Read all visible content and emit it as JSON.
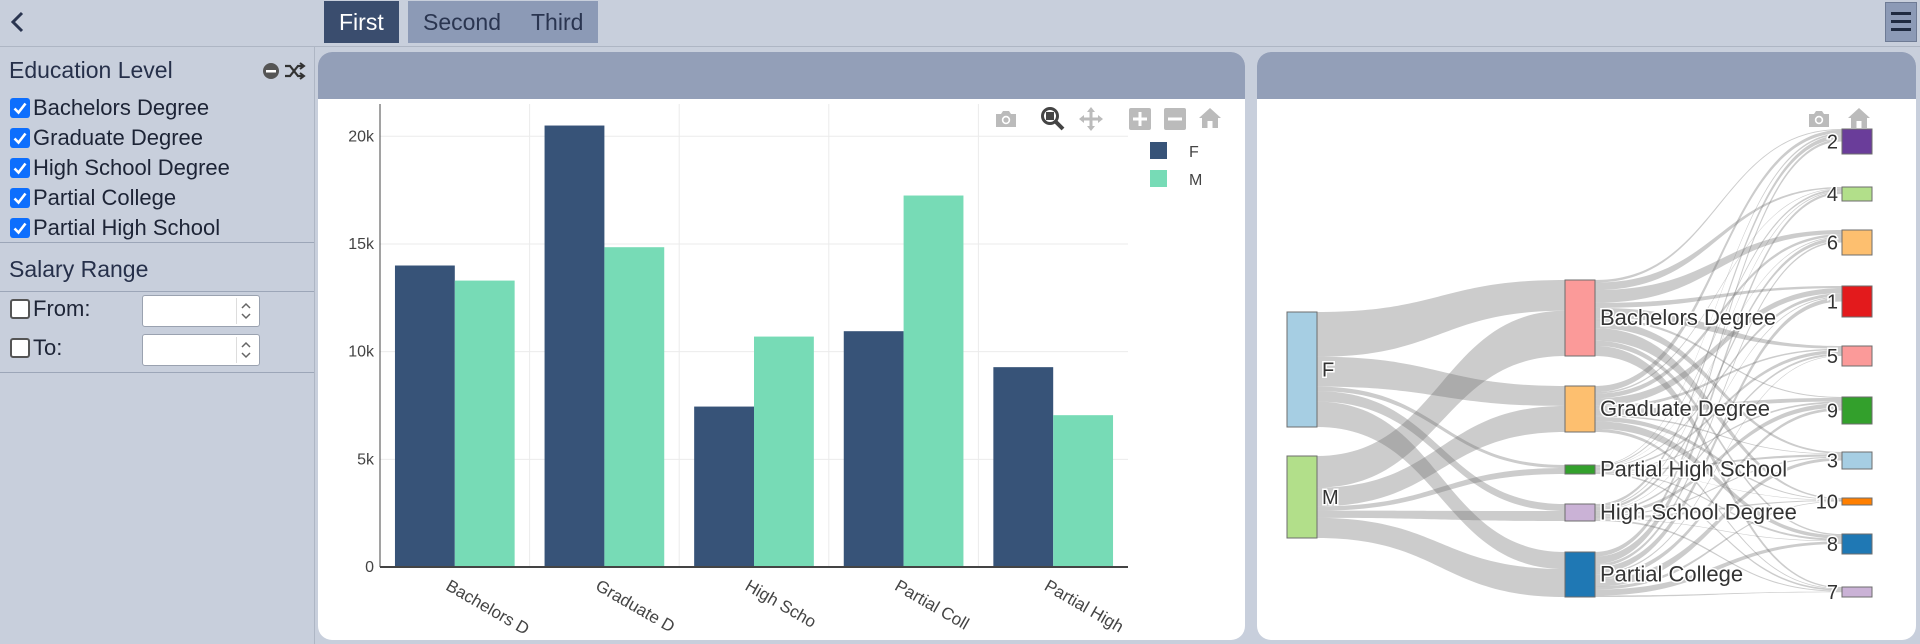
{
  "tabs": [
    {
      "label": "First",
      "active": true
    },
    {
      "label": "Second",
      "active": false
    },
    {
      "label": "Third",
      "active": false
    }
  ],
  "sidebar": {
    "education_title": "Education Level",
    "education_items": [
      {
        "label": "Bachelors Degree",
        "checked": true
      },
      {
        "label": "Graduate Degree",
        "checked": true
      },
      {
        "label": "High School Degree",
        "checked": true
      },
      {
        "label": "Partial College",
        "checked": true
      },
      {
        "label": "Partial High School",
        "checked": true
      }
    ],
    "salary_title": "Salary Range",
    "from_label": "From:",
    "to_label": "To:",
    "from_value": "",
    "to_value": ""
  },
  "colors": {
    "F": "#375378",
    "M": "#77dbb6",
    "header": "#939fb8"
  },
  "icons": [
    "back-chevron-icon",
    "hamburger-menu-icon",
    "camera-icon",
    "zoom-icon",
    "pan-icon",
    "zoom-in-icon",
    "zoom-out-icon",
    "home-icon",
    "shuffle-icon",
    "minus-circle-icon"
  ],
  "chart_data": [
    {
      "type": "bar",
      "categories": [
        "Bachelors Degree",
        "Graduate Degree",
        "High School Degree",
        "Partial College",
        "Partial High School"
      ],
      "category_tick_labels": [
        "Bachelors D",
        "Graduate D",
        "High Scho",
        "Partial Coll",
        "Partial High"
      ],
      "series": [
        {
          "name": "F",
          "values": [
            14000,
            20500,
            7450,
            10950,
            9280
          ]
        },
        {
          "name": "M",
          "values": [
            13300,
            14850,
            10700,
            17250,
            7050
          ]
        }
      ],
      "yticks": [
        0,
        5000,
        10000,
        15000,
        20000
      ],
      "ytick_labels": [
        "0",
        "5k",
        "10k",
        "15k",
        "20k"
      ],
      "ylim": [
        0,
        21500
      ],
      "legend_position": "top-right",
      "grid": true
    },
    {
      "type": "sankey",
      "source_nodes": [
        {
          "label": "F",
          "color": "#a6cee3"
        },
        {
          "label": "M",
          "color": "#b2df8a"
        }
      ],
      "middle_nodes": [
        {
          "label": "Bachelors Degree",
          "color": "#fb9a99"
        },
        {
          "label": "Graduate Degree",
          "color": "#fdbf6f"
        },
        {
          "label": "Partial High School",
          "color": "#33a02c"
        },
        {
          "label": "High School Degree",
          "color": "#cab2d6"
        },
        {
          "label": "Partial College",
          "color": "#1f78b4"
        }
      ],
      "target_nodes": [
        {
          "label": "2",
          "color": "#6a3d9a"
        },
        {
          "label": "4",
          "color": "#b2df8a"
        },
        {
          "label": "6",
          "color": "#fdbf6f"
        },
        {
          "label": "1",
          "color": "#e31a1c"
        },
        {
          "label": "5",
          "color": "#fb9a99"
        },
        {
          "label": "9",
          "color": "#33a02c"
        },
        {
          "label": "3",
          "color": "#a6cee3"
        },
        {
          "label": "10",
          "color": "#ff7f00"
        },
        {
          "label": "8",
          "color": "#1f78b4"
        },
        {
          "label": "7",
          "color": "#cab2d6"
        }
      ]
    }
  ]
}
